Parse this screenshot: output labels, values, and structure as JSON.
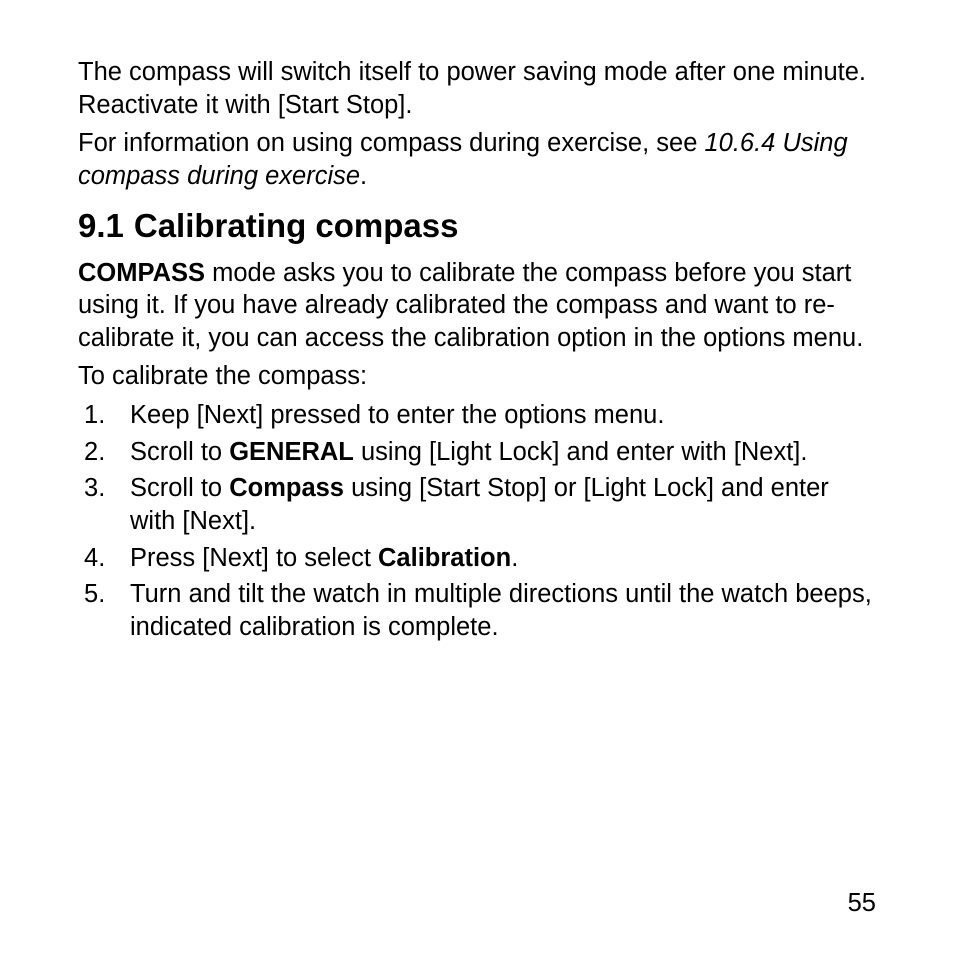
{
  "intro": {
    "para1_a": "The compass will switch itself to power saving mode after one minute. Reactivate it with [Start Stop].",
    "para2_a": "For information on using compass during exercise, see ",
    "para2_ref": "10.6.4 Using compass during exercise",
    "para2_b": "."
  },
  "heading": {
    "number": "9.1",
    "title": "Calibrating compass"
  },
  "section": {
    "p1_bold": "COMPASS",
    "p1_rest": " mode asks you to calibrate the compass before you start using it. If you have already calibrated the compass and want to re-calibrate it, you can access the calibration option in the options menu.",
    "p2": "To calibrate the compass:"
  },
  "steps": {
    "s1": "Keep [Next] pressed to enter the options menu.",
    "s2_a": "Scroll to ",
    "s2_bold": "GENERAL",
    "s2_b": " using [Light Lock] and enter with [Next].",
    "s3_a": "Scroll to ",
    "s3_bold": "Compass",
    "s3_b": " using [Start Stop] or [Light Lock] and enter with [Next].",
    "s4_a": "Press [Next] to select ",
    "s4_bold": "Calibration",
    "s4_b": ".",
    "s5": "Turn and tilt the watch in multiple directions until the watch beeps, indicated calibration is complete."
  },
  "page_number": "55"
}
